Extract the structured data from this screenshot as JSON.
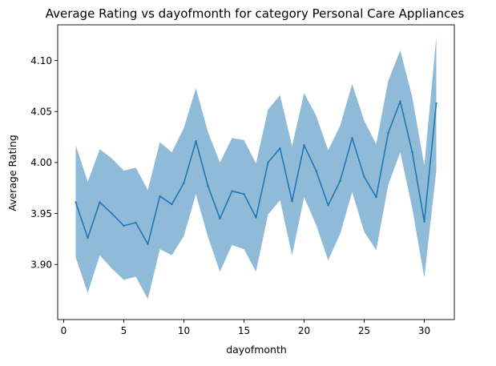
{
  "chart_data": {
    "type": "line",
    "title": "Average Rating vs dayofmonth for category Personal Care Appliances",
    "xlabel": "dayofmonth",
    "ylabel": "Average Rating",
    "xlim": [
      -0.5,
      32.5
    ],
    "ylim": [
      3.846,
      4.135
    ],
    "xticks": [
      0,
      5,
      10,
      15,
      20,
      25,
      30
    ],
    "yticks": [
      3.9,
      3.95,
      4.0,
      4.05,
      4.1
    ],
    "ytick_labels": [
      "3.90",
      "3.95",
      "4.00",
      "4.05",
      "4.10"
    ],
    "grid": false,
    "line_color": "#1f77b4",
    "band_color": "#1f77b4",
    "band_opacity": 0.5,
    "series": [
      {
        "x": [
          1,
          2,
          3,
          4,
          5,
          6,
          7,
          8,
          9,
          10,
          11,
          12,
          13,
          14,
          15,
          16,
          17,
          18,
          19,
          20,
          21,
          22,
          23,
          24,
          25,
          26,
          27,
          28,
          29,
          30,
          31
        ],
        "mean": [
          3.961,
          3.926,
          3.961,
          3.95,
          3.938,
          3.941,
          3.92,
          3.967,
          3.959,
          3.98,
          4.021,
          3.977,
          3.945,
          3.972,
          3.969,
          3.946,
          4.0,
          4.014,
          3.962,
          4.017,
          3.992,
          3.958,
          3.982,
          4.024,
          3.986,
          3.966,
          4.029,
          4.06,
          4.01,
          3.942,
          4.058
        ],
        "lower": [
          3.907,
          3.872,
          3.909,
          3.896,
          3.885,
          3.888,
          3.866,
          3.915,
          3.909,
          3.928,
          3.969,
          3.927,
          3.893,
          3.919,
          3.915,
          3.893,
          3.949,
          3.963,
          3.909,
          3.966,
          3.939,
          3.904,
          3.93,
          3.971,
          3.932,
          3.914,
          3.978,
          4.01,
          3.955,
          3.887,
          3.992
        ],
        "upper": [
          4.017,
          3.981,
          4.013,
          4.004,
          3.992,
          3.995,
          3.973,
          4.02,
          4.01,
          4.034,
          4.073,
          4.03,
          4.0,
          4.024,
          4.022,
          3.999,
          4.052,
          4.066,
          4.016,
          4.068,
          4.046,
          4.012,
          4.036,
          4.077,
          4.041,
          4.018,
          4.08,
          4.11,
          4.064,
          3.997,
          4.123
        ]
      }
    ]
  }
}
